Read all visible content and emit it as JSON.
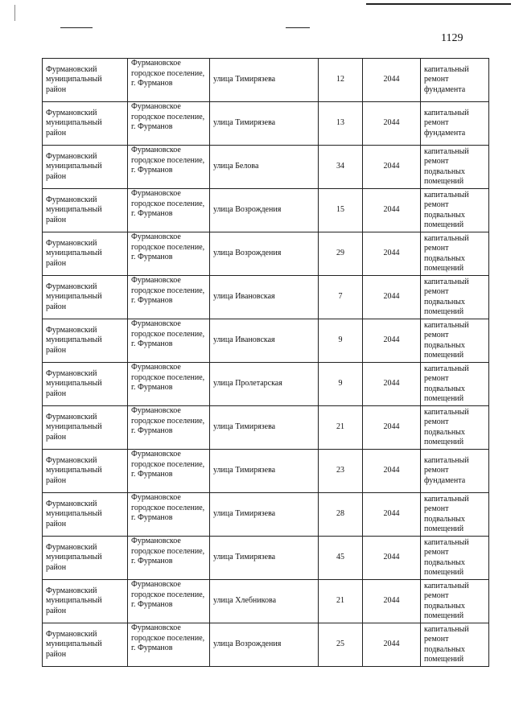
{
  "page_number": "1129",
  "rows": [
    {
      "district": "Фурмановский муниципальный район",
      "settlement": "Фурмановское городское поселение, г. Фурманов",
      "street": "улица Тимирязева",
      "house": "12",
      "year": "2044",
      "work": "капитальный ремонт фундамента"
    },
    {
      "district": "Фурмановский муниципальный район",
      "settlement": "Фурмановское городское поселение, г. Фурманов",
      "street": "улица Тимирязева",
      "house": "13",
      "year": "2044",
      "work": "капитальный ремонт фундамента"
    },
    {
      "district": "Фурмановский муниципальный район",
      "settlement": "Фурмановское городское поселение, г. Фурманов",
      "street": "улица  Белова",
      "house": "34",
      "year": "2044",
      "work": "капитальный ремонт подвальных помещений"
    },
    {
      "district": "Фурмановский муниципальный район",
      "settlement": "Фурмановское городское поселение, г. Фурманов",
      "street": "улица Возрождения",
      "house": "15",
      "year": "2044",
      "work": "капитальный ремонт подвальных помещений"
    },
    {
      "district": "Фурмановский муниципальный район",
      "settlement": "Фурмановское городское поселение, г. Фурманов",
      "street": "улица Возрождения",
      "house": "29",
      "year": "2044",
      "work": "капитальный ремонт подвальных помещений"
    },
    {
      "district": "Фурмановский муниципальный район",
      "settlement": "Фурмановское городское поселение, г. Фурманов",
      "street": "улица  Ивановская",
      "house": "7",
      "year": "2044",
      "work": "капитальный ремонт подвальных помещений"
    },
    {
      "district": "Фурмановский муниципальный район",
      "settlement": "Фурмановское городское поселение, г. Фурманов",
      "street": "улица  Ивановская",
      "house": "9",
      "year": "2044",
      "work": "капитальный ремонт подвальных помещений"
    },
    {
      "district": "Фурмановский муниципальный район",
      "settlement": "Фурмановское городское поселение, г. Фурманов",
      "street": "улица  Пролетарская",
      "house": "9",
      "year": "2044",
      "work": "капитальный ремонт подвальных помещений"
    },
    {
      "district": "Фурмановский муниципальный район",
      "settlement": "Фурмановское городское поселение, г. Фурманов",
      "street": "улица Тимирязева",
      "house": "21",
      "year": "2044",
      "work": "капитальный ремонт подвальных помещений"
    },
    {
      "district": "Фурмановский муниципальный район",
      "settlement": "Фурмановское городское поселение, г. Фурманов",
      "street": "улица Тимирязева",
      "house": "23",
      "year": "2044",
      "work": "капитальный ремонт фундамента"
    },
    {
      "district": "Фурмановский муниципальный район",
      "settlement": "Фурмановское городское поселение, г. Фурманов",
      "street": "улица Тимирязева",
      "house": "28",
      "year": "2044",
      "work": "капитальный ремонт подвальных помещений"
    },
    {
      "district": "Фурмановский муниципальный район",
      "settlement": "Фурмановское городское поселение, г. Фурманов",
      "street": "улица Тимирязева",
      "house": "45",
      "year": "2044",
      "work": "капитальный ремонт подвальных помещений"
    },
    {
      "district": "Фурмановский муниципальный район",
      "settlement": "Фурмановское городское поселение, г. Фурманов",
      "street": "улица Хлебникова",
      "house": "21",
      "year": "2044",
      "work": "капитальный ремонт подвальных помещений"
    },
    {
      "district": "Фурмановский муниципальный район",
      "settlement": "Фурмановское городское поселение, г. Фурманов",
      "street": "улица Возрождения",
      "house": "25",
      "year": "2044",
      "work": "капитальный ремонт подвальных помещений"
    }
  ]
}
